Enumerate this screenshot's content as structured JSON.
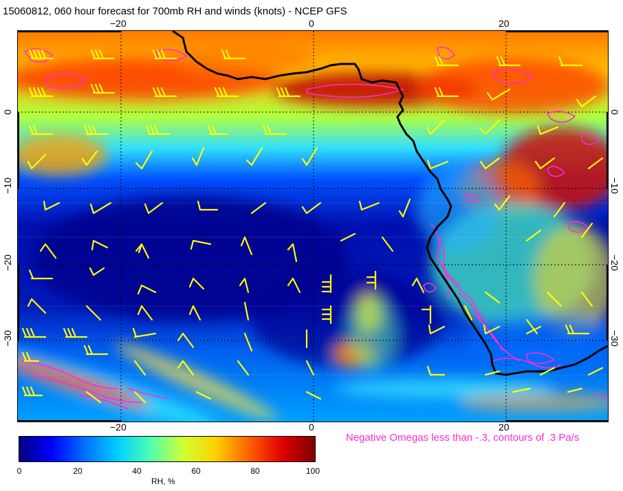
{
  "title": "15060812, 060 hour forecast for 700mb RH and winds (knots) - NCEP GFS",
  "lon_ticks": [
    "−20",
    "0",
    "20"
  ],
  "lat_ticks": [
    "0",
    "−10",
    "−20",
    "−30"
  ],
  "colorbar": {
    "ticks": [
      "0",
      "20",
      "40",
      "60",
      "80",
      "100"
    ],
    "label": "RH, %",
    "colors": [
      "#00007f",
      "#0000ff",
      "#0070ff",
      "#00d0ff",
      "#4fffb0",
      "#d0ff30",
      "#ffd000",
      "#ff6000",
      "#e00000",
      "#7f0000"
    ]
  },
  "omega_note": "Negative Omegas less than -.3, contours of .3 Pa/s",
  "colors": {
    "coastline": "#000000",
    "wind_barb": "#ffff00",
    "omega_contour": "#ff2ad6",
    "gridline": "#000000"
  }
}
